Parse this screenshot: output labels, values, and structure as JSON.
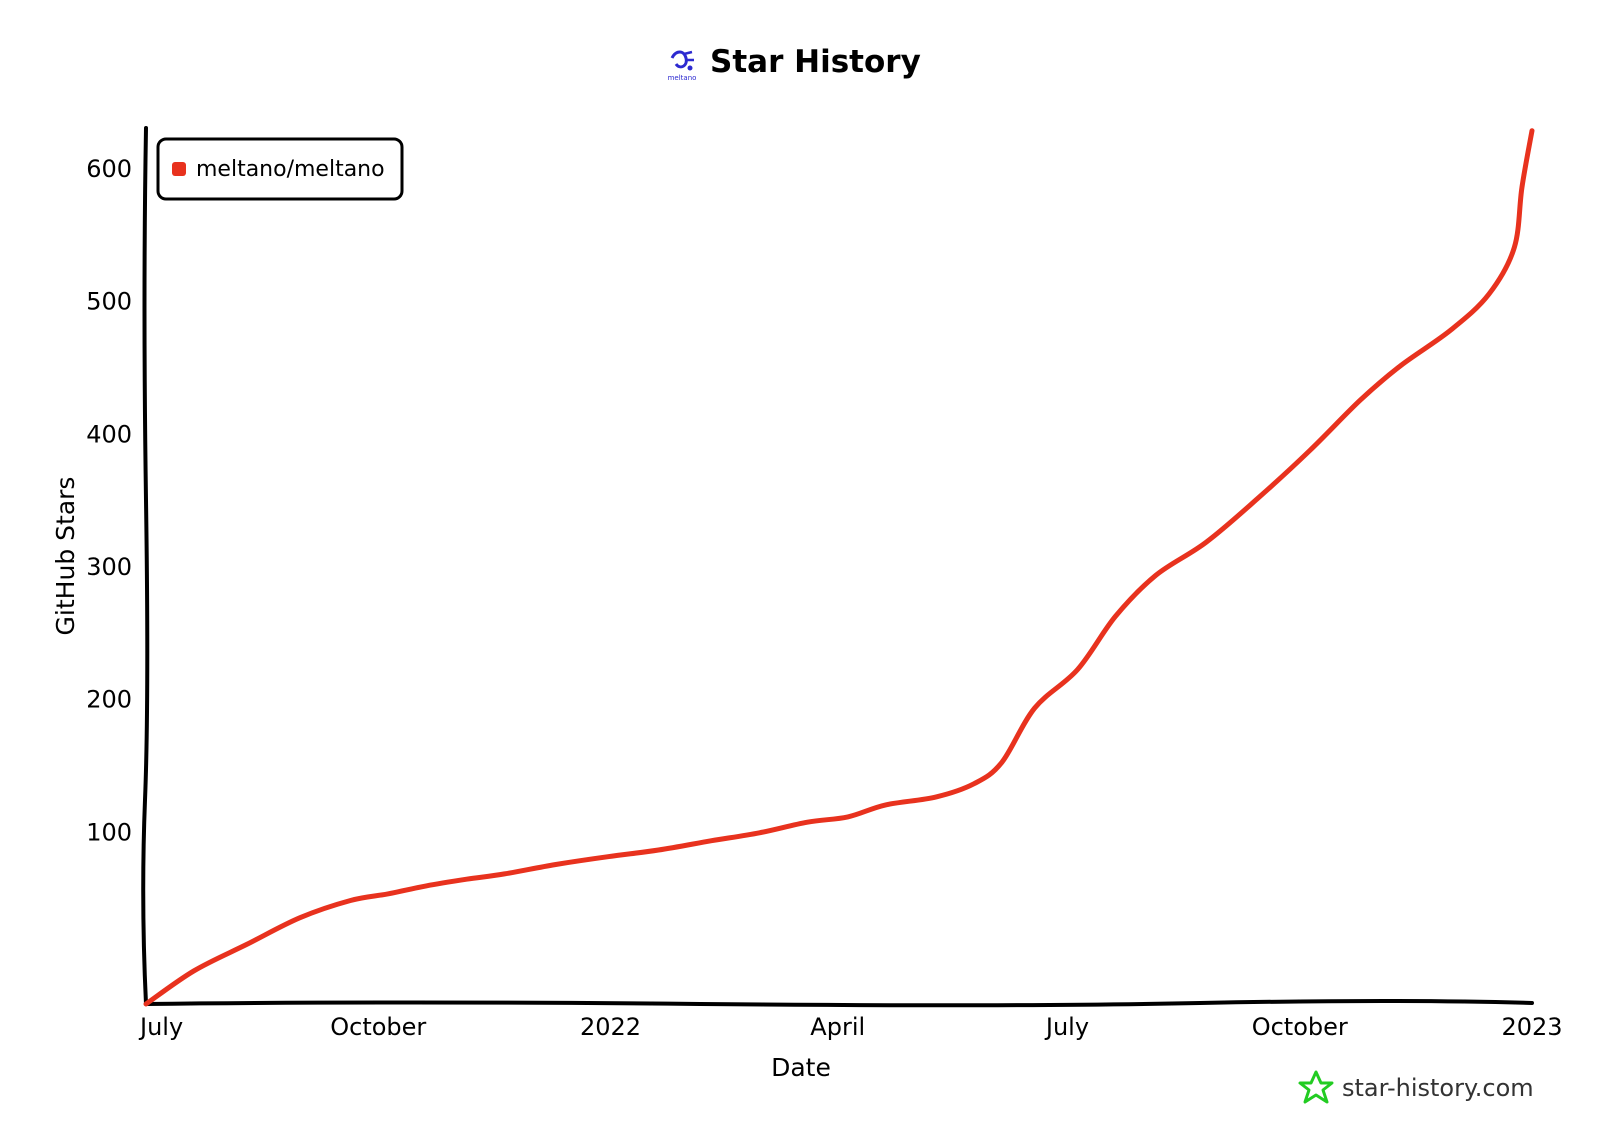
{
  "chart_data": {
    "type": "line",
    "title": "Star History",
    "xlabel": "Date",
    "ylabel": "GitHub Stars",
    "x_ticks": [
      "July",
      "October",
      "2022",
      "April",
      "July",
      "October",
      "2023"
    ],
    "x_tick_dates": [
      "2021-07-01",
      "2021-10-01",
      "2022-01-01",
      "2022-04-01",
      "2022-07-01",
      "2022-10-01",
      "2023-01-01"
    ],
    "xlim": [
      "2021-07-01",
      "2023-01-01"
    ],
    "y_ticks": [
      "100",
      "200",
      "300",
      "400",
      "500",
      "600"
    ],
    "y_tick_values": [
      100,
      200,
      300,
      400,
      500,
      600
    ],
    "ylim": [
      -30,
      630
    ],
    "legend_position": "top-left",
    "grid": false,
    "series": [
      {
        "name": "meltano/meltano",
        "color": "#e8321e",
        "points": [
          [
            "2021-07-01",
            -30
          ],
          [
            "2021-07-20",
            -5
          ],
          [
            "2021-08-10",
            15
          ],
          [
            "2021-08-31",
            35
          ],
          [
            "2021-09-20",
            48
          ],
          [
            "2021-10-05",
            53
          ],
          [
            "2021-10-20",
            59
          ],
          [
            "2021-11-05",
            64
          ],
          [
            "2021-11-20",
            68
          ],
          [
            "2021-12-10",
            75
          ],
          [
            "2021-12-31",
            81
          ],
          [
            "2022-01-20",
            86
          ],
          [
            "2022-02-10",
            93
          ],
          [
            "2022-03-01",
            99
          ],
          [
            "2022-03-20",
            107
          ],
          [
            "2022-04-05",
            111
          ],
          [
            "2022-04-20",
            120
          ],
          [
            "2022-05-10",
            126
          ],
          [
            "2022-05-25",
            136
          ],
          [
            "2022-06-05",
            152
          ],
          [
            "2022-06-18",
            193
          ],
          [
            "2022-07-05",
            222
          ],
          [
            "2022-07-20",
            262
          ],
          [
            "2022-08-05",
            293
          ],
          [
            "2022-08-25",
            318
          ],
          [
            "2022-09-15",
            352
          ],
          [
            "2022-10-05",
            387
          ],
          [
            "2022-10-25",
            425
          ],
          [
            "2022-11-10",
            451
          ],
          [
            "2022-11-30",
            478
          ],
          [
            "2022-12-15",
            505
          ],
          [
            "2022-12-25",
            540
          ],
          [
            "2022-12-28",
            585
          ],
          [
            "2023-01-01",
            628
          ]
        ]
      }
    ]
  },
  "brand": {
    "logo_caption": "meltano",
    "watermark": "star-history.com",
    "watermark_icon": "star-icon",
    "logo_icon": "meltano-logo-icon",
    "watermark_color": "#22cc22",
    "logo_color": "#2d2ad0"
  }
}
